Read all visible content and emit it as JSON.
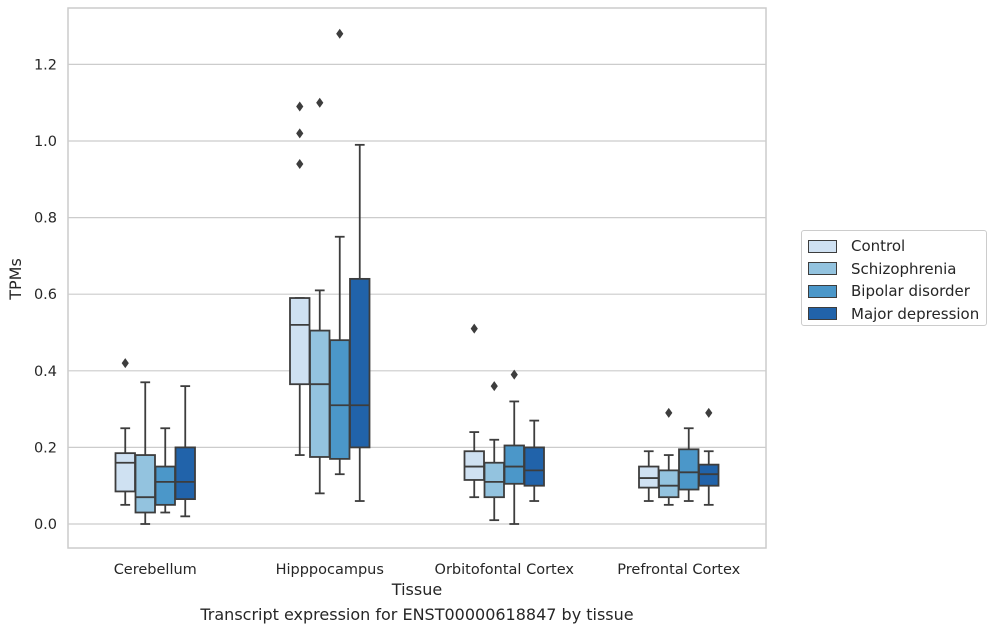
{
  "caption": "Transcript expression for ENST00000618847 by tissue",
  "chart_data": {
    "type": "box",
    "xlabel": "Tissue",
    "ylabel": "TPMs",
    "ylim": [
      -0.06,
      1.35
    ],
    "yticks": [
      0.0,
      0.2,
      0.4,
      0.6,
      0.8,
      1.0,
      1.2
    ],
    "ytick_labels": [
      "0.0",
      "0.2",
      "0.4",
      "0.6",
      "0.8",
      "1.0",
      "1.2"
    ],
    "grid": "horizontal",
    "legend_position": "right, outside",
    "categories": [
      "Cerebellum",
      "Hipppocampus",
      "Orbitofontal Cortex",
      "Prefrontal Cortex"
    ],
    "series": [
      {
        "name": "Control",
        "color": "#cfe1f2",
        "boxes": [
          {
            "whisker_low": 0.05,
            "q1": 0.085,
            "median": 0.16,
            "q3": 0.185,
            "whisker_high": 0.25,
            "outliers": [
              0.42
            ]
          },
          {
            "whisker_low": 0.18,
            "q1": 0.365,
            "median": 0.52,
            "q3": 0.59,
            "whisker_high": 0.59,
            "outliers": [
              0.94,
              1.02,
              1.09
            ]
          },
          {
            "whisker_low": 0.07,
            "q1": 0.115,
            "median": 0.15,
            "q3": 0.19,
            "whisker_high": 0.24,
            "outliers": [
              0.51
            ]
          },
          {
            "whisker_low": 0.06,
            "q1": 0.095,
            "median": 0.12,
            "q3": 0.15,
            "whisker_high": 0.19,
            "outliers": []
          }
        ]
      },
      {
        "name": "Schizophrenia",
        "color": "#93c3df",
        "boxes": [
          {
            "whisker_low": 0.0,
            "q1": 0.03,
            "median": 0.07,
            "q3": 0.18,
            "whisker_high": 0.37,
            "outliers": []
          },
          {
            "whisker_low": 0.08,
            "q1": 0.175,
            "median": 0.365,
            "q3": 0.505,
            "whisker_high": 0.61,
            "outliers": [
              1.1
            ]
          },
          {
            "whisker_low": 0.01,
            "q1": 0.07,
            "median": 0.11,
            "q3": 0.16,
            "whisker_high": 0.22,
            "outliers": [
              0.36
            ]
          },
          {
            "whisker_low": 0.05,
            "q1": 0.07,
            "median": 0.1,
            "q3": 0.14,
            "whisker_high": 0.18,
            "outliers": [
              0.29
            ]
          }
        ]
      },
      {
        "name": "Bipolar disorder",
        "color": "#4b97c9",
        "boxes": [
          {
            "whisker_low": 0.03,
            "q1": 0.05,
            "median": 0.11,
            "q3": 0.15,
            "whisker_high": 0.25,
            "outliers": []
          },
          {
            "whisker_low": 0.13,
            "q1": 0.17,
            "median": 0.31,
            "q3": 0.48,
            "whisker_high": 0.75,
            "outliers": [
              1.28
            ]
          },
          {
            "whisker_low": 0.0,
            "q1": 0.105,
            "median": 0.15,
            "q3": 0.205,
            "whisker_high": 0.32,
            "outliers": [
              0.39
            ]
          },
          {
            "whisker_low": 0.06,
            "q1": 0.09,
            "median": 0.135,
            "q3": 0.195,
            "whisker_high": 0.25,
            "outliers": []
          }
        ]
      },
      {
        "name": "Major depression",
        "color": "#2163aa",
        "boxes": [
          {
            "whisker_low": 0.02,
            "q1": 0.065,
            "median": 0.11,
            "q3": 0.2,
            "whisker_high": 0.36,
            "outliers": []
          },
          {
            "whisker_low": 0.06,
            "q1": 0.2,
            "median": 0.31,
            "q3": 0.64,
            "whisker_high": 0.99,
            "outliers": []
          },
          {
            "whisker_low": 0.06,
            "q1": 0.1,
            "median": 0.14,
            "q3": 0.2,
            "whisker_high": 0.27,
            "outliers": []
          },
          {
            "whisker_low": 0.05,
            "q1": 0.1,
            "median": 0.13,
            "q3": 0.155,
            "whisker_high": 0.19,
            "outliers": [
              0.29
            ]
          }
        ]
      }
    ]
  }
}
